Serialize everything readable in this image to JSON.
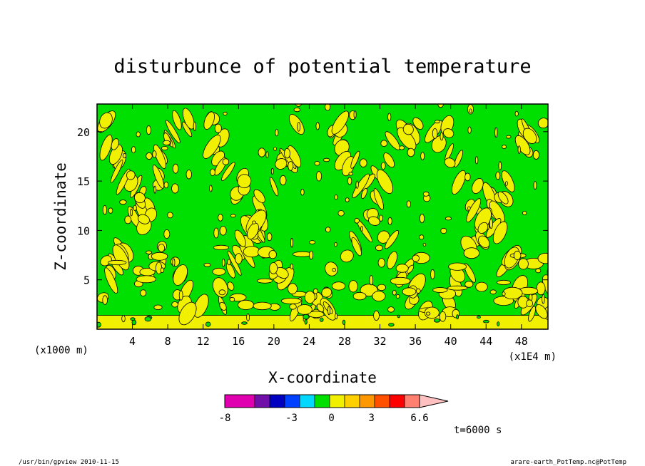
{
  "chart_data": {
    "type": "heatmap",
    "title": "disturbunce of potential temperature",
    "xlabel": "X-coordinate",
    "ylabel": "Z-coordinate",
    "x_unit": "(x1E4 m)",
    "y_unit": "(x1000 m)",
    "x_ticks": [
      4,
      8,
      12,
      16,
      20,
      24,
      28,
      32,
      36,
      40,
      44,
      48
    ],
    "y_ticks": [
      5,
      10,
      15,
      20
    ],
    "xlim": [
      0,
      51
    ],
    "ylim": [
      0,
      22.8
    ],
    "colorbar": {
      "labels": [
        "-8",
        "-3",
        "0",
        "3",
        "6.6"
      ],
      "label_values": [
        -8,
        -3,
        0,
        3,
        6.6
      ],
      "range": [
        -8,
        6.6
      ],
      "colors": [
        "#e000b0",
        "#e000b0",
        "#7010a8",
        "#0000c0",
        "#0040ff",
        "#00d8ff",
        "#00e000",
        "#f0f000",
        "#ffd000",
        "#ff9800",
        "#ff5000",
        "#ff0000",
        "#ff8070"
      ],
      "overflow_color": "#ffc0c0"
    },
    "annotation": "t=6000 s",
    "footer_left": "/usr/bin/gpview   2010-11-15",
    "footer_right": "arare-earth_PotTemp.nc@PotTemp",
    "field_colors": {
      "background": "#00e000",
      "positive": "#f0f000",
      "contour": "#000000"
    }
  }
}
